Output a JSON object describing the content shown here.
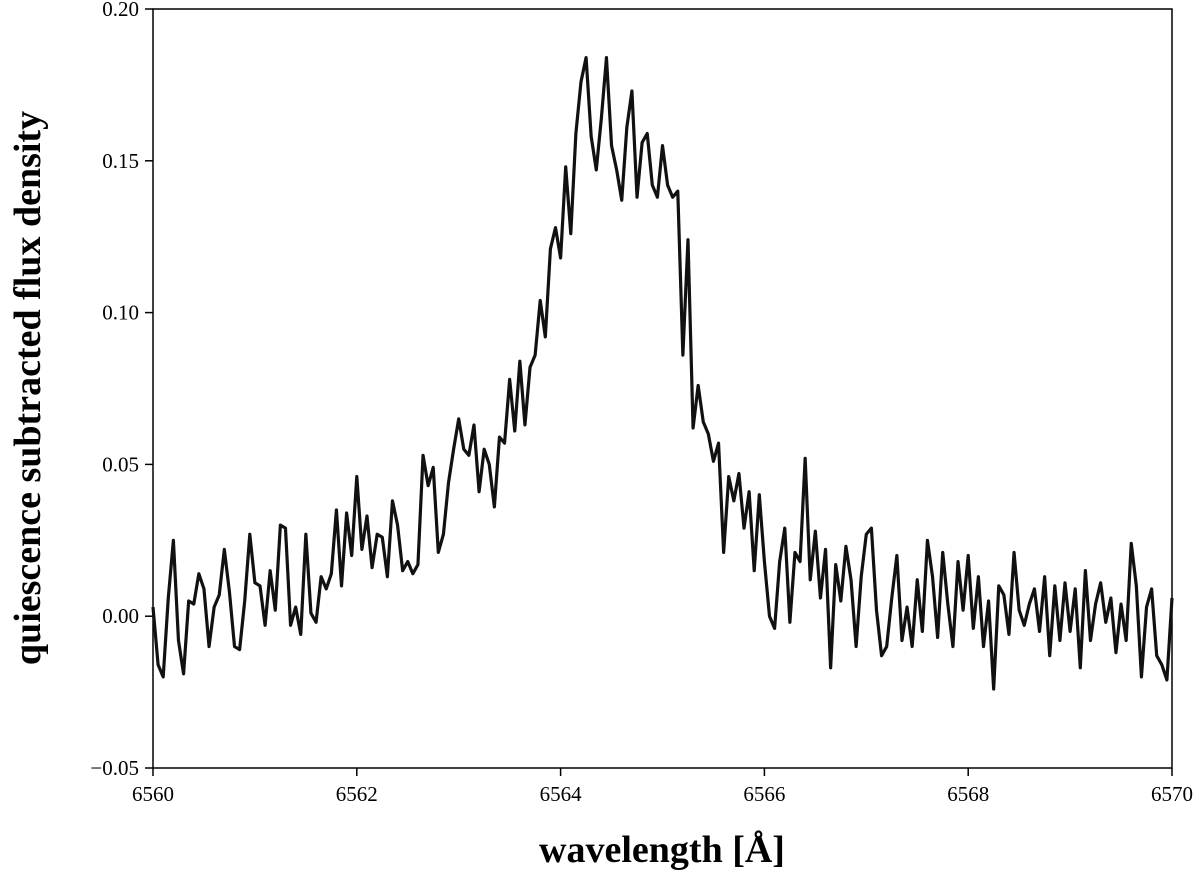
{
  "chart_data": {
    "type": "line",
    "xlabel": "wavelength [Å]",
    "ylabel": "quiescence subtracted flux density",
    "color": "#111111",
    "xlim": [
      6560,
      6570
    ],
    "ylim": [
      -0.05,
      0.2
    ],
    "xticks": [
      6560,
      6562,
      6564,
      6566,
      6568,
      6570
    ],
    "yticks": [
      {
        "value": -0.05,
        "label": "−0.05"
      },
      {
        "value": 0,
        "label": "0.00"
      },
      0.05,
      {
        "value": 0.1,
        "label": "0.10"
      },
      0.15,
      {
        "value": 0.2,
        "label": "0.20"
      }
    ],
    "grid": false,
    "x": [
      6560.0,
      6560.05,
      6560.1,
      6560.15,
      6560.2,
      6560.25,
      6560.3,
      6560.35,
      6560.4,
      6560.45,
      6560.5,
      6560.55,
      6560.6,
      6560.65,
      6560.7,
      6560.75,
      6560.8,
      6560.85,
      6560.9,
      6560.95,
      6561.0,
      6561.05,
      6561.1,
      6561.15,
      6561.2,
      6561.25,
      6561.3,
      6561.35,
      6561.4,
      6561.45,
      6561.5,
      6561.55,
      6561.6,
      6561.65,
      6561.7,
      6561.75,
      6561.8,
      6561.85,
      6561.9,
      6561.95,
      6562.0,
      6562.05,
      6562.1,
      6562.15,
      6562.2,
      6562.25,
      6562.3,
      6562.35,
      6562.4,
      6562.45,
      6562.5,
      6562.55,
      6562.6,
      6562.65,
      6562.7,
      6562.75,
      6562.8,
      6562.85,
      6562.9,
      6562.95,
      6563.0,
      6563.05,
      6563.1,
      6563.15,
      6563.2,
      6563.25,
      6563.3,
      6563.35,
      6563.4,
      6563.45,
      6563.5,
      6563.55,
      6563.6,
      6563.65,
      6563.7,
      6563.75,
      6563.8,
      6563.85,
      6563.9,
      6563.95,
      6564.0,
      6564.05,
      6564.1,
      6564.15,
      6564.2,
      6564.25,
      6564.3,
      6564.35,
      6564.4,
      6564.45,
      6564.5,
      6564.55,
      6564.6,
      6564.65,
      6564.7,
      6564.75,
      6564.8,
      6564.85,
      6564.9,
      6564.95,
      6565.0,
      6565.05,
      6565.1,
      6565.15,
      6565.2,
      6565.25,
      6565.3,
      6565.35,
      6565.4,
      6565.45,
      6565.5,
      6565.55,
      6565.6,
      6565.65,
      6565.7,
      6565.75,
      6565.8,
      6565.85,
      6565.9,
      6565.95,
      6566.0,
      6566.05,
      6566.1,
      6566.15,
      6566.2,
      6566.25,
      6566.3,
      6566.35,
      6566.4,
      6566.45,
      6566.5,
      6566.55,
      6566.6,
      6566.65,
      6566.7,
      6566.75,
      6566.8,
      6566.85,
      6566.9,
      6566.95,
      6567.0,
      6567.05,
      6567.1,
      6567.15,
      6567.2,
      6567.25,
      6567.3,
      6567.35,
      6567.4,
      6567.45,
      6567.5,
      6567.55,
      6567.6,
      6567.65,
      6567.7,
      6567.75,
      6567.8,
      6567.85,
      6567.9,
      6567.95,
      6568.0,
      6568.05,
      6568.1,
      6568.15,
      6568.2,
      6568.25,
      6568.3,
      6568.35,
      6568.4,
      6568.45,
      6568.5,
      6568.55,
      6568.6,
      6568.65,
      6568.7,
      6568.75,
      6568.8,
      6568.85,
      6568.9,
      6568.95,
      6569.0,
      6569.05,
      6569.1,
      6569.15,
      6569.2,
      6569.25,
      6569.3,
      6569.35,
      6569.4,
      6569.45,
      6569.5,
      6569.55,
      6569.6,
      6569.65,
      6569.7,
      6569.75,
      6569.8,
      6569.85,
      6569.9,
      6569.95,
      6570.0
    ],
    "values": [
      0.003,
      -0.016,
      -0.02,
      0.006,
      0.025,
      -0.008,
      -0.019,
      0.005,
      0.004,
      0.014,
      0.009,
      -0.01,
      0.003,
      0.007,
      0.022,
      0.008,
      -0.01,
      -0.011,
      0.005,
      0.027,
      0.011,
      0.01,
      -0.003,
      0.015,
      0.002,
      0.03,
      0.029,
      -0.003,
      0.003,
      -0.006,
      0.027,
      0.001,
      -0.002,
      0.013,
      0.009,
      0.014,
      0.035,
      0.01,
      0.034,
      0.02,
      0.046,
      0.022,
      0.033,
      0.016,
      0.027,
      0.026,
      0.013,
      0.038,
      0.03,
      0.015,
      0.018,
      0.014,
      0.017,
      0.053,
      0.043,
      0.049,
      0.021,
      0.027,
      0.044,
      0.055,
      0.065,
      0.055,
      0.053,
      0.063,
      0.041,
      0.055,
      0.05,
      0.036,
      0.059,
      0.057,
      0.078,
      0.061,
      0.084,
      0.063,
      0.082,
      0.086,
      0.104,
      0.092,
      0.121,
      0.128,
      0.118,
      0.148,
      0.126,
      0.159,
      0.176,
      0.184,
      0.158,
      0.147,
      0.164,
      0.184,
      0.155,
      0.147,
      0.137,
      0.161,
      0.173,
      0.138,
      0.156,
      0.159,
      0.142,
      0.138,
      0.155,
      0.142,
      0.138,
      0.14,
      0.086,
      0.124,
      0.062,
      0.076,
      0.064,
      0.06,
      0.051,
      0.057,
      0.021,
      0.046,
      0.038,
      0.047,
      0.029,
      0.041,
      0.015,
      0.04,
      0.018,
      0.0,
      -0.004,
      0.018,
      0.029,
      -0.002,
      0.021,
      0.018,
      0.052,
      0.012,
      0.028,
      0.006,
      0.022,
      -0.017,
      0.017,
      0.005,
      0.023,
      0.012,
      -0.01,
      0.013,
      0.027,
      0.029,
      0.002,
      -0.013,
      -0.01,
      0.006,
      0.02,
      -0.008,
      0.003,
      -0.01,
      0.012,
      -0.005,
      0.025,
      0.013,
      -0.007,
      0.021,
      0.004,
      -0.01,
      0.018,
      0.002,
      0.02,
      -0.004,
      0.013,
      -0.01,
      0.005,
      -0.024,
      0.01,
      0.007,
      -0.006,
      0.021,
      0.002,
      -0.003,
      0.004,
      0.009,
      -0.005,
      0.013,
      -0.013,
      0.01,
      -0.008,
      0.011,
      -0.005,
      0.009,
      -0.017,
      0.015,
      -0.008,
      0.004,
      0.011,
      -0.002,
      0.006,
      -0.012,
      0.004,
      -0.008,
      0.024,
      0.01,
      -0.02,
      0.003,
      0.009,
      -0.013,
      -0.016,
      -0.021,
      0.006
    ]
  }
}
